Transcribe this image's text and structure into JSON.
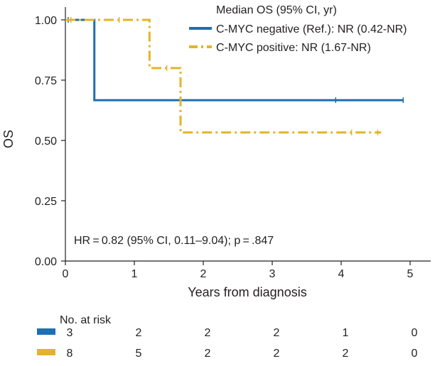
{
  "chart_data": {
    "type": "line",
    "title": "",
    "xlabel": "Years from diagnosis",
    "ylabel": "OS",
    "xlim": [
      0,
      5.3
    ],
    "ylim": [
      0,
      1.0
    ],
    "xticks": [
      "0",
      "1",
      "2",
      "3",
      "4",
      "5"
    ],
    "yticks": [
      "0.00",
      "0.25",
      "0.50",
      "0.75",
      "1.00"
    ],
    "grid": false,
    "legend": {
      "title": "Median OS (95% CI, yr)",
      "position": "top-right"
    },
    "series": [
      {
        "name": "C-MYC negative (Ref.): NR (0.42-NR)",
        "color": "#1f6fb2",
        "style": "solid",
        "steps": [
          [
            0,
            1.0
          ],
          [
            0.42,
            1.0
          ],
          [
            0.42,
            0.667
          ],
          [
            4.9,
            0.667
          ]
        ],
        "censored": [
          [
            0.04,
            1.0
          ],
          [
            3.92,
            0.667
          ],
          [
            4.9,
            0.667
          ]
        ]
      },
      {
        "name": "C-MYC positive: NR (1.67-NR)",
        "color": "#e3b42a",
        "style": "dashdot",
        "steps": [
          [
            0,
            1.0
          ],
          [
            1.22,
            1.0
          ],
          [
            1.22,
            0.8
          ],
          [
            1.67,
            0.8
          ],
          [
            1.67,
            0.533
          ],
          [
            4.58,
            0.533
          ]
        ],
        "censored": [
          [
            0.08,
            1.0
          ],
          [
            0.78,
            1.0
          ],
          [
            1.47,
            0.8
          ],
          [
            4.15,
            0.533
          ],
          [
            4.53,
            0.533
          ]
        ]
      }
    ],
    "annotation": "HR = 0.82 (95% CI, 0.11–9.04); p = .847",
    "risk_table": {
      "title": "No. at risk",
      "times": [
        0,
        1,
        2,
        3,
        4,
        5
      ],
      "rows": [
        {
          "color": "#1f6fb2",
          "values": [
            "3",
            "2",
            "2",
            "2",
            "1",
            "0"
          ]
        },
        {
          "color": "#e3b42a",
          "values": [
            "8",
            "5",
            "2",
            "2",
            "2",
            "0"
          ]
        }
      ]
    }
  }
}
